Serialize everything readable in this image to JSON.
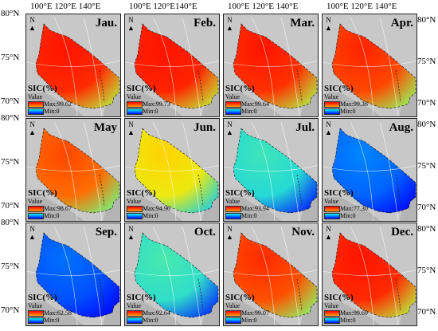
{
  "top_lon_labels": [
    {
      "text": "100°E 120°E 140°E",
      "col": 0
    },
    {
      "text": "100°E 120°E140°E",
      "col": 1
    },
    {
      "text": "100°E 120°E 140°E",
      "col": 2
    },
    {
      "text": "100°E 120°E 140°E",
      "col": 3
    }
  ],
  "left_lat_labels": {
    "row0": [
      "80°N",
      "75°N",
      "70°N"
    ],
    "row1": [
      "80°N",
      "75°N",
      "70°N"
    ],
    "row2": [
      "80°N",
      "75°N",
      "70°N"
    ]
  },
  "right_lat_labels": {
    "row0": [
      "80°N",
      "75°N",
      "70°N"
    ],
    "row1": [
      "80°N",
      "75°N",
      "70°N"
    ],
    "row2": [
      "80°N",
      "75°N",
      "70°N"
    ]
  },
  "legend": {
    "title": "SIC(%)",
    "subtitle": "Value",
    "min_label": "Min:0"
  },
  "north_label": "N",
  "colors": {
    "land": "#c8c8c8",
    "sea_ice_scale": [
      "#0000ff",
      "#00ffff",
      "#ffff00",
      "#ff8000",
      "#ff0000"
    ]
  },
  "panels": [
    {
      "month": "Jau.",
      "max_label": "Max:99.62",
      "max": 99.62,
      "mean_level": 0.97
    },
    {
      "month": "Feb.",
      "max_label": "Max:99.73",
      "max": 99.73,
      "mean_level": 0.98
    },
    {
      "month": "Mar.",
      "max_label": "Max:99.64",
      "max": 99.64,
      "mean_level": 0.96
    },
    {
      "month": "Apr.",
      "max_label": "Max:99.36",
      "max": 99.36,
      "mean_level": 0.93
    },
    {
      "month": "May",
      "max_label": "Max:98.67",
      "max": 98.67,
      "mean_level": 0.88
    },
    {
      "month": "Jun.",
      "max_label": "Max:94.96",
      "max": 94.96,
      "mean_level": 0.68
    },
    {
      "month": "Jul.",
      "max_label": "Max:93.94",
      "max": 93.94,
      "mean_level": 0.38
    },
    {
      "month": "Aug.",
      "max_label": "Max:77.30",
      "max": 77.3,
      "mean_level": 0.15
    },
    {
      "month": "Sep.",
      "max_label": "Max:62.58",
      "max": 62.58,
      "mean_level": 0.12
    },
    {
      "month": "Oct.",
      "max_label": "Max:92.64",
      "max": 92.64,
      "mean_level": 0.4
    },
    {
      "month": "Nov.",
      "max_label": "Max:99.07",
      "max": 99.07,
      "mean_level": 0.92
    },
    {
      "month": "Dec.",
      "max_label": "Max:99.69",
      "max": 99.69,
      "mean_level": 0.97
    }
  ]
}
